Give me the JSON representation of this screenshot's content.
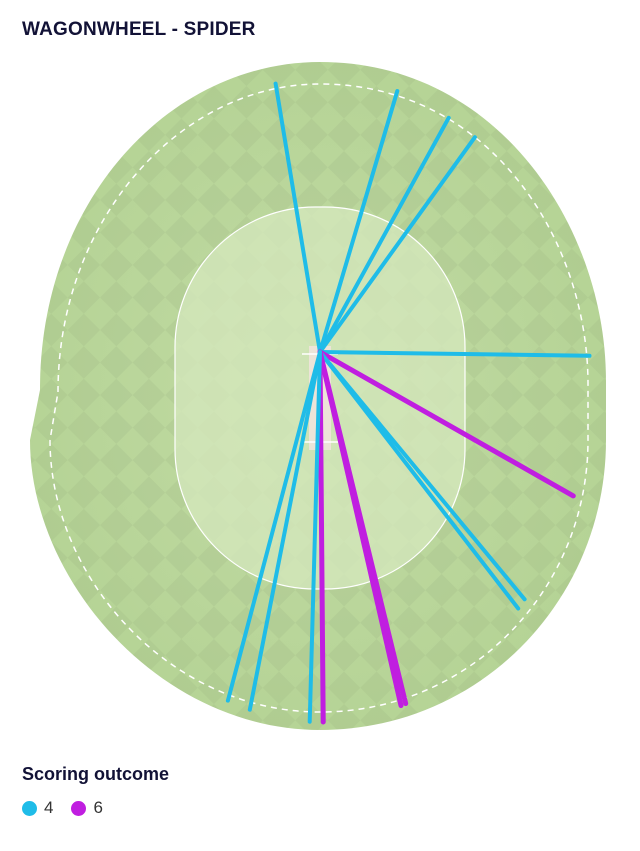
{
  "title": "WAGONWHEEL - SPIDER",
  "legend": {
    "title": "Scoring outcome",
    "items": [
      {
        "label": "4",
        "color": "#1fbce8"
      },
      {
        "label": "6",
        "color": "#c01ee0"
      }
    ]
  },
  "colors": {
    "field": "#b9d69a",
    "field_edge": "#a8c988",
    "infield": "#d3e6b9",
    "pitch": "#eaf0c8"
  },
  "shots": [
    {
      "outcome": "4",
      "angle_deg": -99.4,
      "distance": 1.0
    },
    {
      "outcome": "4",
      "angle_deg": -73.5,
      "distance": 1.0
    },
    {
      "outcome": "4",
      "angle_deg": -61.2,
      "distance": 0.98
    },
    {
      "outcome": "4",
      "angle_deg": -54.2,
      "distance": 0.97
    },
    {
      "outcome": "4",
      "angle_deg": 0.8,
      "distance": 0.98
    },
    {
      "outcome": "6",
      "angle_deg": 29.6,
      "distance": 1.0
    },
    {
      "outcome": "4",
      "angle_deg": 50.4,
      "distance": 1.0
    },
    {
      "outcome": "4",
      "angle_deg": 52.3,
      "distance": 1.0
    },
    {
      "outcome": "6",
      "angle_deg": 76.3,
      "distance": 1.0
    },
    {
      "outcome": "6",
      "angle_deg": 77.1,
      "distance": 1.0
    },
    {
      "outcome": "6",
      "angle_deg": 89.5,
      "distance": 1.0
    },
    {
      "outcome": "4",
      "angle_deg": 91.6,
      "distance": 1.0
    },
    {
      "outcome": "4",
      "angle_deg": 101.1,
      "distance": 1.0
    },
    {
      "outcome": "4",
      "angle_deg": 104.8,
      "distance": 1.0
    }
  ]
}
